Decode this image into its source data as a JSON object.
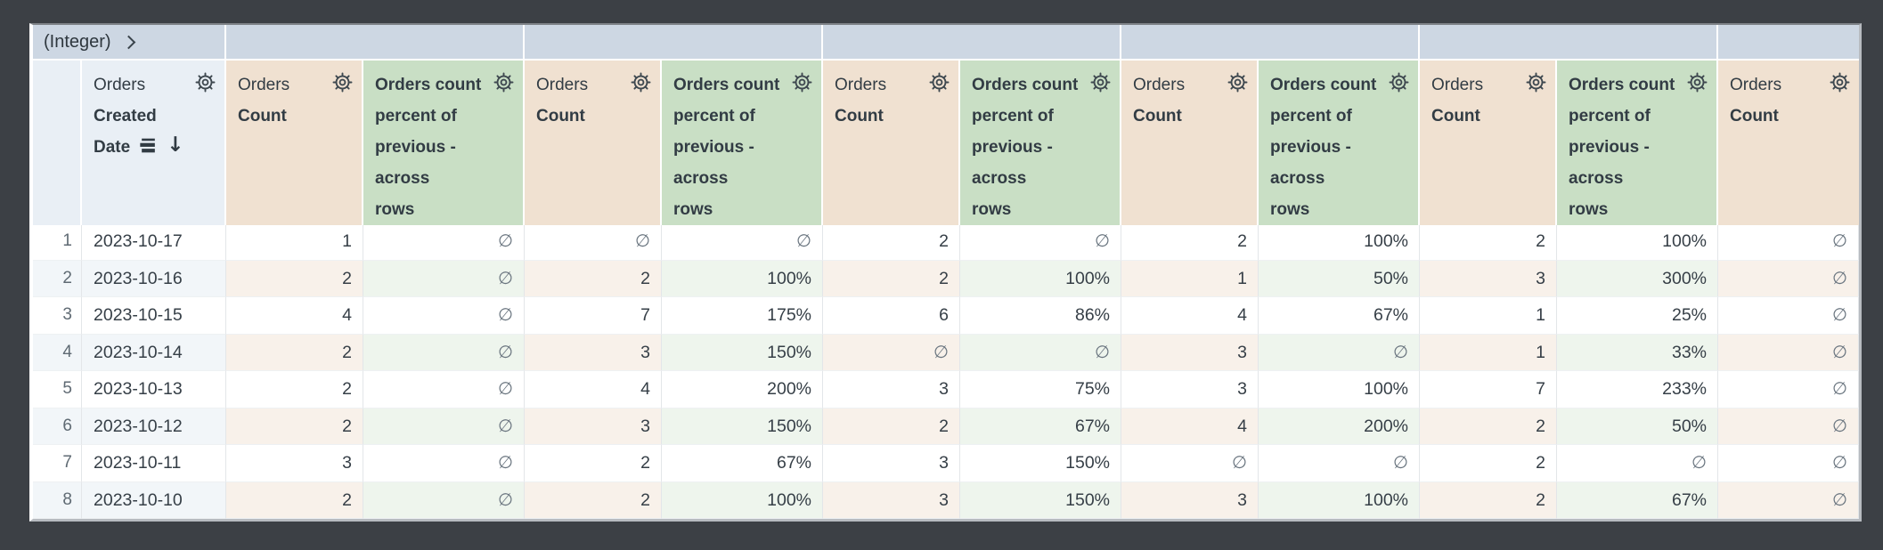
{
  "pivot_band": {
    "label": "(Integer)",
    "chevron_icon": "chevron-right"
  },
  "headers": {
    "dimension": {
      "view": "Orders",
      "field": "Created\nDate"
    },
    "measure": {
      "view": "Orders",
      "field": "Count"
    },
    "calc": "Orders count\npercent of\nprevious -\nacross\nrows",
    "calc_full": "Orders count percent of previous - across rows",
    "icons": {
      "gear": "settings-gear",
      "subtotal": "subtotal-rows",
      "sort": "arrow-down"
    },
    "sort_arrow": "↓"
  },
  "null_symbol": "∅",
  "rows": [
    {
      "index": "1",
      "date": "2023-10-17",
      "cells": [
        "1",
        "∅",
        "∅",
        "∅",
        "2",
        "∅",
        "2",
        "100%",
        "2",
        "100%",
        "∅"
      ]
    },
    {
      "index": "2",
      "date": "2023-10-16",
      "cells": [
        "2",
        "∅",
        "2",
        "100%",
        "2",
        "100%",
        "1",
        "50%",
        "3",
        "300%",
        "∅"
      ]
    },
    {
      "index": "3",
      "date": "2023-10-15",
      "cells": [
        "4",
        "∅",
        "7",
        "175%",
        "6",
        "86%",
        "4",
        "67%",
        "1",
        "25%",
        "∅"
      ]
    },
    {
      "index": "4",
      "date": "2023-10-14",
      "cells": [
        "2",
        "∅",
        "3",
        "150%",
        "∅",
        "∅",
        "3",
        "∅",
        "1",
        "33%",
        "∅"
      ]
    },
    {
      "index": "5",
      "date": "2023-10-13",
      "cells": [
        "2",
        "∅",
        "4",
        "200%",
        "3",
        "75%",
        "3",
        "100%",
        "7",
        "233%",
        "∅"
      ]
    },
    {
      "index": "6",
      "date": "2023-10-12",
      "cells": [
        "2",
        "∅",
        "3",
        "150%",
        "2",
        "67%",
        "4",
        "200%",
        "2",
        "50%",
        "∅"
      ]
    },
    {
      "index": "7",
      "date": "2023-10-11",
      "cells": [
        "3",
        "∅",
        "2",
        "67%",
        "3",
        "150%",
        "∅",
        "∅",
        "2",
        "∅",
        "∅"
      ]
    },
    {
      "index": "8",
      "date": "2023-10-10",
      "cells": [
        "2",
        "∅",
        "2",
        "100%",
        "3",
        "150%",
        "3",
        "100%",
        "2",
        "67%",
        "∅"
      ]
    }
  ],
  "colors": {
    "background": "#3c4045",
    "pivot_band": "#cdd7e3",
    "dimension_header": "#e9eff5",
    "measure_header": "#f0e1d1",
    "calc_header": "#c9dfc5",
    "stripe_dimension": "#f2f6f9",
    "stripe_measure": "#f8f1ea",
    "stripe_calc": "#eef5ed",
    "text": "#363f47"
  }
}
